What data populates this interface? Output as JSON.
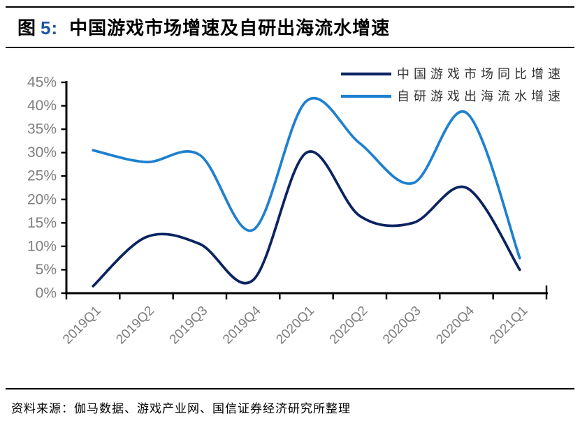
{
  "figure": {
    "prefix": "图",
    "number": "5:",
    "title": "中国游戏市场增速及自研出海流水增速",
    "source": "资料来源：伽马数据、游戏产业网、国信证券经济研究所整理"
  },
  "chart_data": {
    "type": "line",
    "smooth": true,
    "grid": false,
    "legend_position": "top-right",
    "categories": [
      "2019Q1",
      "2019Q2",
      "2019Q3",
      "2019Q4",
      "2020Q1",
      "2020Q2",
      "2020Q3",
      "2020Q4",
      "2021Q1"
    ],
    "series": [
      {
        "name": "中国游戏市场同比增速",
        "color": "#0A2361",
        "values": [
          1.5,
          12,
          10.5,
          2.8,
          30,
          16.5,
          15,
          22.5,
          5
        ]
      },
      {
        "name": "自研游戏出海流水增速",
        "color": "#1E80D0",
        "values": [
          30.5,
          28,
          29.5,
          13.5,
          41,
          32,
          23.5,
          38.5,
          7.5
        ]
      }
    ],
    "xlabel": "",
    "ylabel": "",
    "ylim": [
      0,
      45
    ],
    "y_tick_labels": [
      "0%",
      "5%",
      "10%",
      "15%",
      "20%",
      "25%",
      "30%",
      "35%",
      "40%",
      "45%"
    ]
  },
  "style": {
    "figure_number_color": "#1D54A8",
    "axis_color": "#000000",
    "tick_label_color": "#7F7F7F",
    "legend_text_color": "#333333",
    "rule_color": "#000000"
  }
}
